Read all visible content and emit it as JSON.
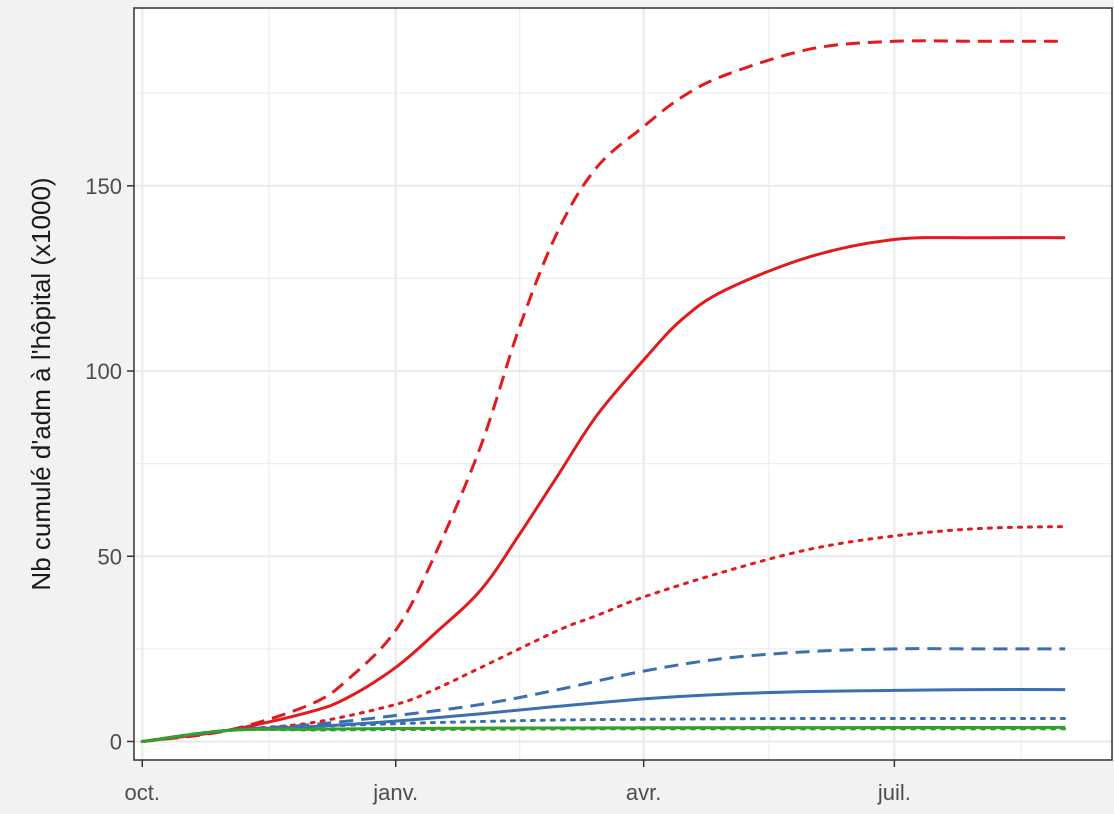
{
  "chart_data": {
    "type": "line",
    "title": "",
    "xlabel": "",
    "ylabel": "Nb cumulé d'adm à l'hôpital (x1000)",
    "x_ticks": [
      {
        "date": "2020-10-01",
        "label": "oct."
      },
      {
        "date": "2021-01-01",
        "label": "janv."
      },
      {
        "date": "2021-04-01",
        "label": "avr."
      },
      {
        "date": "2021-07-01",
        "label": "juil."
      }
    ],
    "y_ticks": [
      0,
      50,
      100,
      150
    ],
    "xlim": [
      "2020-09-28",
      "2021-09-18"
    ],
    "ylim": [
      -5,
      198
    ],
    "grid": true,
    "background": "#ffffff",
    "grid_color": "#ebebeb",
    "panel_border_color": "#333333",
    "colors": {
      "red": "#e31a1c",
      "blue": "#3a6fb0",
      "green": "#33a02c"
    },
    "series": [
      {
        "color": "#e31a1c",
        "linestyle": "dashed",
        "x": [
          "2020-10-01",
          "2020-11-01",
          "2020-12-01",
          "2020-12-15",
          "2021-01-01",
          "2021-01-15",
          "2021-02-01",
          "2021-02-15",
          "2021-03-01",
          "2021-03-15",
          "2021-04-01",
          "2021-04-15",
          "2021-05-01",
          "2021-06-01",
          "2021-07-01",
          "2021-08-01",
          "2021-09-01"
        ],
        "y": [
          0,
          3,
          10,
          17,
          30,
          50,
          80,
          112,
          138,
          155,
          166,
          174,
          180,
          187,
          189,
          189,
          189
        ]
      },
      {
        "color": "#e31a1c",
        "linestyle": "solid",
        "x": [
          "2020-10-01",
          "2020-11-01",
          "2020-12-01",
          "2020-12-15",
          "2021-01-01",
          "2021-01-15",
          "2021-02-01",
          "2021-02-15",
          "2021-03-01",
          "2021-03-15",
          "2021-04-01",
          "2021-04-15",
          "2021-05-01",
          "2021-06-01",
          "2021-07-01",
          "2021-08-01",
          "2021-09-01"
        ],
        "y": [
          0,
          3,
          8,
          12,
          20,
          29,
          41,
          56,
          72,
          88,
          103,
          114,
          122,
          131,
          135.5,
          136,
          136
        ]
      },
      {
        "color": "#e31a1c",
        "linestyle": "dotted",
        "x": [
          "2020-10-01",
          "2020-11-01",
          "2020-12-01",
          "2021-01-01",
          "2021-01-15",
          "2021-02-01",
          "2021-03-01",
          "2021-03-15",
          "2021-04-01",
          "2021-05-01",
          "2021-06-01",
          "2021-07-01",
          "2021-08-01",
          "2021-09-01"
        ],
        "y": [
          0,
          3,
          5,
          10,
          14,
          20,
          30,
          34,
          39,
          46,
          52,
          55.5,
          57.5,
          58
        ]
      },
      {
        "color": "#3a6fb0",
        "linestyle": "dashed",
        "x": [
          "2020-10-01",
          "2020-11-01",
          "2020-12-01",
          "2021-01-01",
          "2021-02-01",
          "2021-03-01",
          "2021-04-01",
          "2021-05-01",
          "2021-06-01",
          "2021-07-01",
          "2021-08-01",
          "2021-09-01"
        ],
        "y": [
          0,
          3,
          4.5,
          7,
          10,
          14,
          19,
          22.5,
          24.3,
          25,
          25,
          25
        ]
      },
      {
        "color": "#3a6fb0",
        "linestyle": "solid",
        "x": [
          "2020-10-01",
          "2020-11-01",
          "2020-12-01",
          "2021-01-01",
          "2021-02-01",
          "2021-03-01",
          "2021-04-01",
          "2021-05-01",
          "2021-06-01",
          "2021-07-01",
          "2021-08-01",
          "2021-09-01"
        ],
        "y": [
          0,
          3,
          4,
          5.5,
          7.5,
          9.5,
          11.5,
          12.8,
          13.5,
          13.8,
          14,
          14
        ]
      },
      {
        "color": "#3a6fb0",
        "linestyle": "dotted",
        "x": [
          "2020-10-01",
          "2020-11-01",
          "2020-12-01",
          "2021-01-01",
          "2021-02-01",
          "2021-03-01",
          "2021-04-01",
          "2021-06-01",
          "2021-09-01"
        ],
        "y": [
          0,
          3,
          4,
          4.8,
          5.4,
          5.8,
          6,
          6.2,
          6.2
        ]
      },
      {
        "color": "#33a02c",
        "linestyle": "solid",
        "x": [
          "2020-10-01",
          "2020-11-01",
          "2020-12-01",
          "2021-01-01",
          "2021-02-01",
          "2021-04-01",
          "2021-09-01"
        ],
        "y": [
          0,
          3,
          3.3,
          3.5,
          3.6,
          3.7,
          3.8
        ]
      },
      {
        "color": "#33a02c",
        "linestyle": "dotted",
        "x": [
          "2020-10-01",
          "2020-11-01",
          "2020-12-01",
          "2021-01-01",
          "2021-02-01",
          "2021-04-01",
          "2021-09-01"
        ],
        "y": [
          0,
          3,
          3.1,
          3.2,
          3.3,
          3.4,
          3.4
        ]
      }
    ]
  }
}
